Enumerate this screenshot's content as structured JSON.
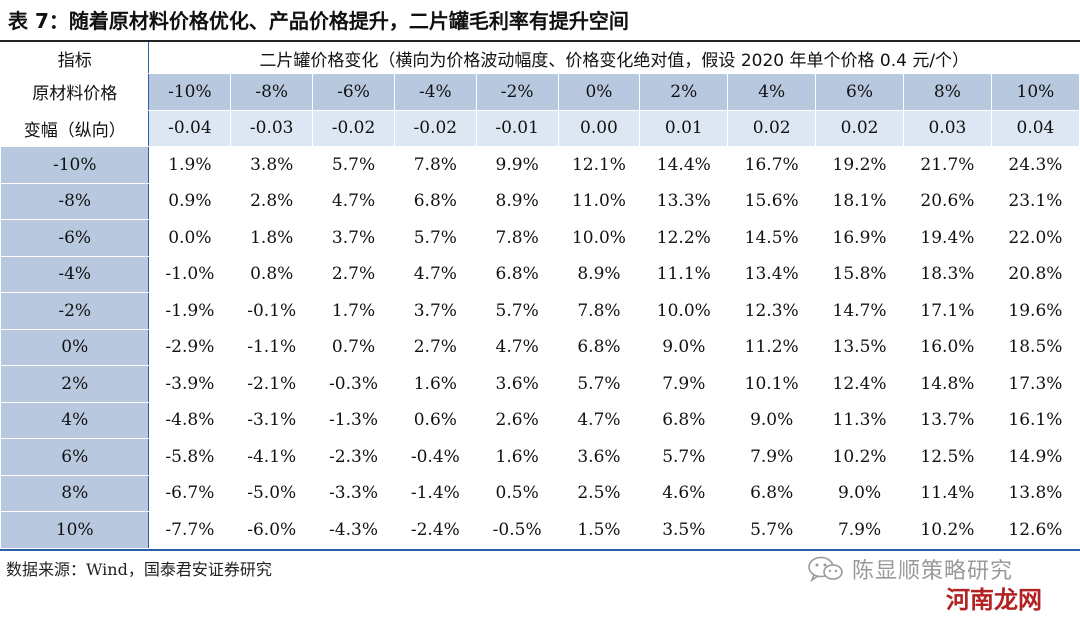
{
  "title": "表 7：随着原材料价格优化、产品价格提升，二片罐毛利率有提升空间",
  "header": {
    "indicator_label": "指标",
    "description": "二片罐价格变化（横向为价格波动幅度、价格变化绝对值，假设 2020 年单个价格 0.4 元/个）",
    "side_label_line1": "原材料价格",
    "side_label_line2": "变幅（纵向）"
  },
  "table": {
    "price_change_pct": [
      "-10%",
      "-8%",
      "-6%",
      "-4%",
      "-2%",
      "0%",
      "2%",
      "4%",
      "6%",
      "8%",
      "10%"
    ],
    "price_change_abs": [
      "-0.04",
      "-0.03",
      "-0.02",
      "-0.02",
      "-0.01",
      "0.00",
      "0.01",
      "0.02",
      "0.02",
      "0.03",
      "0.04"
    ],
    "rows": [
      {
        "label": "-10%",
        "values": [
          "1.9%",
          "3.8%",
          "5.7%",
          "7.8%",
          "9.9%",
          "12.1%",
          "14.4%",
          "16.7%",
          "19.2%",
          "21.7%",
          "24.3%"
        ]
      },
      {
        "label": "-8%",
        "values": [
          "0.9%",
          "2.8%",
          "4.7%",
          "6.8%",
          "8.9%",
          "11.0%",
          "13.3%",
          "15.6%",
          "18.1%",
          "20.6%",
          "23.1%"
        ]
      },
      {
        "label": "-6%",
        "values": [
          "0.0%",
          "1.8%",
          "3.7%",
          "5.7%",
          "7.8%",
          "10.0%",
          "12.2%",
          "14.5%",
          "16.9%",
          "19.4%",
          "22.0%"
        ]
      },
      {
        "label": "-4%",
        "values": [
          "-1.0%",
          "0.8%",
          "2.7%",
          "4.7%",
          "6.8%",
          "8.9%",
          "11.1%",
          "13.4%",
          "15.8%",
          "18.3%",
          "20.8%"
        ]
      },
      {
        "label": "-2%",
        "values": [
          "-1.9%",
          "-0.1%",
          "1.7%",
          "3.7%",
          "5.7%",
          "7.8%",
          "10.0%",
          "12.3%",
          "14.7%",
          "17.1%",
          "19.6%"
        ]
      },
      {
        "label": "0%",
        "values": [
          "-2.9%",
          "-1.1%",
          "0.7%",
          "2.7%",
          "4.7%",
          "6.8%",
          "9.0%",
          "11.2%",
          "13.5%",
          "16.0%",
          "18.5%"
        ]
      },
      {
        "label": "2%",
        "values": [
          "-3.9%",
          "-2.1%",
          "-0.3%",
          "1.6%",
          "3.6%",
          "5.7%",
          "7.9%",
          "10.1%",
          "12.4%",
          "14.8%",
          "17.3%"
        ]
      },
      {
        "label": "4%",
        "values": [
          "-4.8%",
          "-3.1%",
          "-1.3%",
          "0.6%",
          "2.6%",
          "4.7%",
          "6.8%",
          "9.0%",
          "11.3%",
          "13.7%",
          "16.1%"
        ]
      },
      {
        "label": "6%",
        "values": [
          "-5.8%",
          "-4.1%",
          "-2.3%",
          "-0.4%",
          "1.6%",
          "3.6%",
          "5.7%",
          "7.9%",
          "10.2%",
          "12.5%",
          "14.9%"
        ]
      },
      {
        "label": "8%",
        "values": [
          "-6.7%",
          "-5.0%",
          "-3.3%",
          "-1.4%",
          "0.5%",
          "2.5%",
          "4.6%",
          "6.8%",
          "9.0%",
          "11.4%",
          "13.8%"
        ]
      },
      {
        "label": "10%",
        "values": [
          "-7.7%",
          "-6.0%",
          "-4.3%",
          "-2.4%",
          "-0.5%",
          "1.5%",
          "3.5%",
          "5.7%",
          "7.9%",
          "10.2%",
          "12.6%"
        ]
      }
    ]
  },
  "source": "数据来源：Wind，国泰君安证券研究",
  "wechat_account": "陈显顺策略研究",
  "watermark": "河南龙网",
  "colors": {
    "header_dark": "#b8c8de",
    "header_light": "#dde6f3",
    "rule_blue": "#2b5fa8"
  },
  "icons": {
    "wechat": "wechat-icon"
  }
}
